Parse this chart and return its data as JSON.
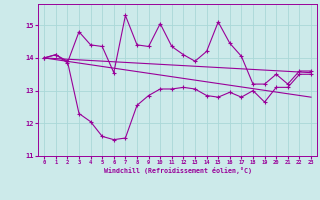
{
  "xlabel": "Windchill (Refroidissement éolien,°C)",
  "xlim": [
    -0.5,
    23.5
  ],
  "ylim": [
    11,
    15.65
  ],
  "yticks": [
    11,
    12,
    13,
    14,
    15
  ],
  "xticks": [
    0,
    1,
    2,
    3,
    4,
    5,
    6,
    7,
    8,
    9,
    10,
    11,
    12,
    13,
    14,
    15,
    16,
    17,
    18,
    19,
    20,
    21,
    22,
    23
  ],
  "bg_color": "#cceaea",
  "line_color": "#990099",
  "grid_color": "#aad8d8",
  "series1_x": [
    0,
    1,
    2,
    3,
    4,
    5,
    6,
    7,
    8,
    9,
    10,
    11,
    12,
    13,
    14,
    15,
    16,
    17,
    18,
    19,
    20,
    21,
    22,
    23
  ],
  "series1_y": [
    14.0,
    14.1,
    13.9,
    12.3,
    12.05,
    11.6,
    11.5,
    11.55,
    12.55,
    12.85,
    13.05,
    13.05,
    13.1,
    13.05,
    12.85,
    12.8,
    12.95,
    12.8,
    13.0,
    12.65,
    13.1,
    13.1,
    13.5,
    13.5
  ],
  "series2_x": [
    0,
    1,
    2,
    3,
    4,
    5,
    6,
    7,
    8,
    9,
    10,
    11,
    12,
    13,
    14,
    15,
    16,
    17,
    18,
    19,
    20,
    21,
    22,
    23
  ],
  "series2_y": [
    14.0,
    14.1,
    13.85,
    14.8,
    14.4,
    14.35,
    13.55,
    15.3,
    14.4,
    14.35,
    15.05,
    14.35,
    14.1,
    13.9,
    14.2,
    15.1,
    14.45,
    14.05,
    13.2,
    13.2,
    13.5,
    13.2,
    13.6,
    13.6
  ],
  "regline1_x": [
    0,
    23
  ],
  "regline1_y": [
    14.0,
    13.55
  ],
  "regline2_x": [
    0,
    23
  ],
  "regline2_y": [
    14.0,
    12.8
  ]
}
